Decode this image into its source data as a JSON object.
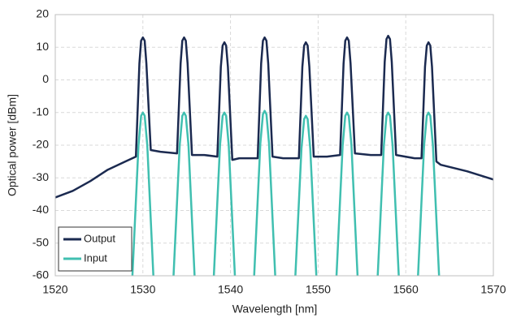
{
  "chart_data": {
    "type": "line",
    "xlabel": "Wavelength [nm]",
    "ylabel": "Optical power [dBm]",
    "xlim": [
      1520,
      1570
    ],
    "xticks": [
      1520,
      1530,
      1540,
      1550,
      1560,
      1570
    ],
    "ylim": [
      -60,
      20
    ],
    "yticks": [
      -60,
      -50,
      -40,
      -30,
      -20,
      -10,
      0,
      10,
      20
    ],
    "grid": true,
    "legend": "lower left",
    "series": [
      {
        "name": "Output",
        "color": "#1b2a50",
        "x": [
          1520,
          1522,
          1524,
          1526,
          1528,
          1529.2,
          1529.6,
          1529.8,
          1530,
          1530.2,
          1530.4,
          1530.9,
          1532,
          1533.9,
          1534.3,
          1534.5,
          1534.7,
          1534.9,
          1535.1,
          1535.6,
          1537,
          1538.5,
          1538.9,
          1539.1,
          1539.3,
          1539.5,
          1539.7,
          1540.2,
          1541,
          1543.1,
          1543.5,
          1543.7,
          1543.9,
          1544.1,
          1544.3,
          1544.8,
          1546,
          1547.8,
          1548.2,
          1548.4,
          1548.6,
          1548.8,
          1549,
          1549.5,
          1551,
          1552.5,
          1552.9,
          1553.1,
          1553.3,
          1553.5,
          1553.7,
          1554.2,
          1556,
          1557.2,
          1557.6,
          1557.8,
          1558,
          1558.2,
          1558.4,
          1558.9,
          1561,
          1561.8,
          1562.2,
          1562.4,
          1562.6,
          1562.8,
          1563,
          1563.5,
          1564,
          1567,
          1570
        ],
        "values": [
          -36,
          -34,
          -31,
          -27.5,
          -25,
          -23.5,
          5,
          12,
          13,
          12,
          5,
          -21.5,
          -22,
          -22.5,
          5,
          12,
          13,
          12,
          5,
          -23,
          -23,
          -23.5,
          4,
          10.5,
          11.5,
          10.5,
          4,
          -24.5,
          -24,
          -24,
          5,
          12,
          13,
          12,
          5,
          -23.5,
          -24,
          -24,
          4,
          10.5,
          11.5,
          10.5,
          4,
          -23.5,
          -23.5,
          -23,
          5,
          12,
          13,
          12,
          5,
          -22.5,
          -23,
          -23,
          5.5,
          12.5,
          13.5,
          12.5,
          5.5,
          -23,
          -24,
          -24,
          4,
          10.5,
          11.5,
          10.5,
          4,
          -25,
          -26,
          -28,
          -30.5
        ]
      },
      {
        "name": "Input",
        "color": "#40bfb0",
        "x": [
          1528.8,
          1529.5,
          1529.8,
          1530,
          1530.2,
          1530.5,
          1531.2,
          1532,
          1533.5,
          1534.2,
          1534.5,
          1534.7,
          1534.9,
          1535.2,
          1535.9,
          1537,
          1538.1,
          1538.8,
          1539.1,
          1539.3,
          1539.5,
          1539.8,
          1540.5,
          1541.5,
          1542.7,
          1543.4,
          1543.7,
          1543.9,
          1544.1,
          1544.4,
          1545.1,
          1546.5,
          1547.4,
          1548.1,
          1548.4,
          1548.6,
          1548.8,
          1549.1,
          1549.8,
          1551,
          1552.1,
          1552.8,
          1553.1,
          1553.3,
          1553.5,
          1553.8,
          1554.5,
          1556,
          1556.8,
          1557.5,
          1557.8,
          1558,
          1558.2,
          1558.5,
          1559.2,
          1560.5,
          1561.4,
          1562.1,
          1562.4,
          1562.6,
          1562.8,
          1563.1,
          1563.8
        ],
        "values": [
          -60,
          -20,
          -11,
          -10,
          -11,
          -20,
          -60,
          null,
          -60,
          -20,
          -11,
          -10,
          -11,
          -20,
          -60,
          null,
          -60,
          -20,
          -11,
          -10,
          -11,
          -20,
          -60,
          null,
          -60,
          -19.5,
          -10.5,
          -9.5,
          -10.5,
          -19.5,
          -60,
          null,
          -60,
          -21,
          -12,
          -11,
          -12,
          -21,
          -60,
          null,
          -60,
          -20,
          -11,
          -10,
          -11,
          -20,
          -60,
          null,
          -60,
          -20,
          -11,
          -10,
          -11,
          -20,
          -60,
          null,
          -60,
          -20,
          -11,
          -10,
          -11,
          -20,
          -60
        ]
      }
    ]
  }
}
